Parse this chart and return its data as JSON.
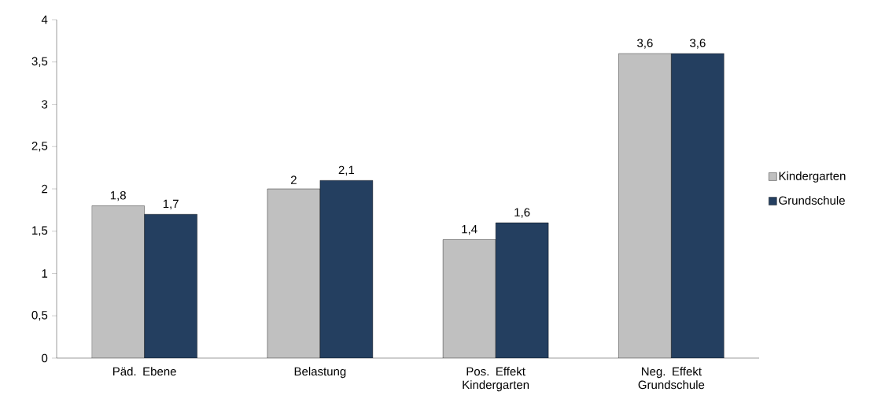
{
  "chart_data": {
    "type": "bar",
    "categories": [
      "Päd. Ebene",
      "Belastung",
      "Pos. Effekt Kindergarten",
      "Neg. Effekt Grundschule"
    ],
    "series": [
      {
        "name": "Kindergarten",
        "color": "#c0c0c0",
        "values": [
          1.8,
          2,
          1.4,
          3.6
        ],
        "value_labels": [
          "1,8",
          "2",
          "1,4",
          "3,6"
        ]
      },
      {
        "name": "Grundschule",
        "color": "#243f60",
        "values": [
          1.7,
          2.1,
          1.6,
          3.6
        ],
        "value_labels": [
          "1,7",
          "2,1",
          "1,6",
          "3,6"
        ]
      }
    ],
    "ylim": [
      0,
      4
    ],
    "yticks": [
      0,
      {
        "value": 0.5,
        "label": "0,5"
      },
      1,
      {
        "value": 1.5,
        "label": "1,5"
      },
      2,
      {
        "value": 2.5,
        "label": "2,5"
      },
      3,
      {
        "value": 3.5,
        "label": "3,5"
      },
      4
    ],
    "grid": false,
    "legend": "right"
  }
}
